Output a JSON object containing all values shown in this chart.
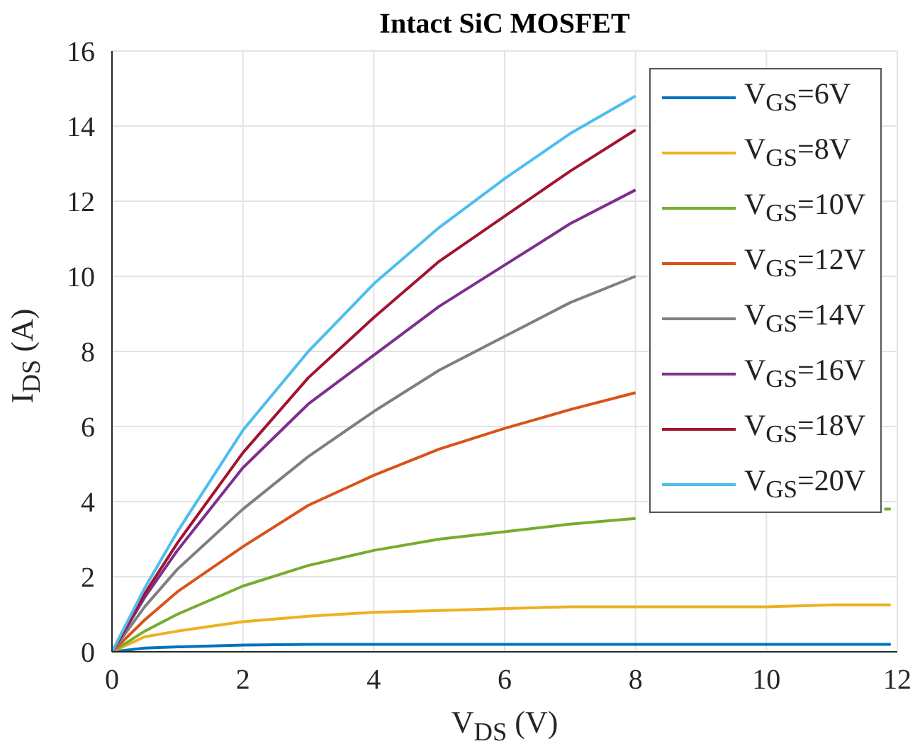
{
  "chart_data": {
    "type": "line",
    "title": "Intact SiC MOSFET",
    "xlabel": "V$_{DS}$ (V)",
    "ylabel": "I$_{DS}$ (A)",
    "x": [
      0,
      0.5,
      1,
      2,
      3,
      4,
      5,
      6,
      7,
      8,
      9,
      10,
      11,
      11.8,
      11.9
    ],
    "series": [
      {
        "name": "V$_{GS}$=6V",
        "color": "#0072bd",
        "values": [
          0,
          0.1,
          0.13,
          0.18,
          0.2,
          0.2,
          0.2,
          0.2,
          0.2,
          0.2,
          0.2,
          0.2,
          0.2,
          0.2,
          0.2
        ]
      },
      {
        "name": "V$_{GS}$=8V",
        "color": "#edb120",
        "values": [
          0,
          0.4,
          0.55,
          0.8,
          0.95,
          1.05,
          1.1,
          1.15,
          1.2,
          1.2,
          1.2,
          1.2,
          1.25,
          1.25,
          1.25
        ]
      },
      {
        "name": "V$_{GS}$=10V",
        "color": "#77ac30",
        "values": [
          0,
          0.55,
          1.0,
          1.75,
          2.3,
          2.7,
          3.0,
          3.2,
          3.4,
          3.55,
          null,
          null,
          null,
          3.8,
          3.8
        ]
      },
      {
        "name": "V$_{GS}$=12V",
        "color": "#d95319",
        "values": [
          0,
          0.85,
          1.6,
          2.8,
          3.9,
          4.7,
          5.4,
          5.95,
          6.45,
          6.9,
          null,
          null,
          null,
          null,
          null
        ]
      },
      {
        "name": "V$_{GS}$=14V",
        "color": "#7f7f7f",
        "values": [
          0,
          1.2,
          2.2,
          3.8,
          5.2,
          6.4,
          7.5,
          8.4,
          9.3,
          10.0,
          null,
          null,
          null,
          null,
          null
        ]
      },
      {
        "name": "V$_{GS}$=16V",
        "color": "#7e2f8e",
        "values": [
          0,
          1.45,
          2.7,
          4.9,
          6.6,
          7.9,
          9.2,
          10.3,
          11.4,
          12.3,
          null,
          null,
          null,
          null,
          null
        ]
      },
      {
        "name": "V$_{GS}$=18V",
        "color": "#a2142f",
        "values": [
          0,
          1.55,
          2.9,
          5.3,
          7.3,
          8.9,
          10.4,
          11.6,
          12.8,
          13.9,
          null,
          null,
          null,
          null,
          null
        ]
      },
      {
        "name": "V$_{GS}$=20V",
        "color": "#4dbeee",
        "values": [
          0,
          1.7,
          3.2,
          5.9,
          8.0,
          9.8,
          11.3,
          12.6,
          13.8,
          14.8,
          null,
          null,
          null,
          null,
          null
        ]
      }
    ],
    "xlim": [
      0,
      12
    ],
    "xticks": [
      0,
      2,
      4,
      6,
      8,
      10,
      12
    ],
    "ylim": [
      0,
      16
    ],
    "yticks": [
      0,
      2,
      4,
      6,
      8,
      10,
      12,
      14,
      16
    ],
    "grid": true,
    "legend": "top right",
    "marker": "none",
    "line_style": "solid"
  }
}
